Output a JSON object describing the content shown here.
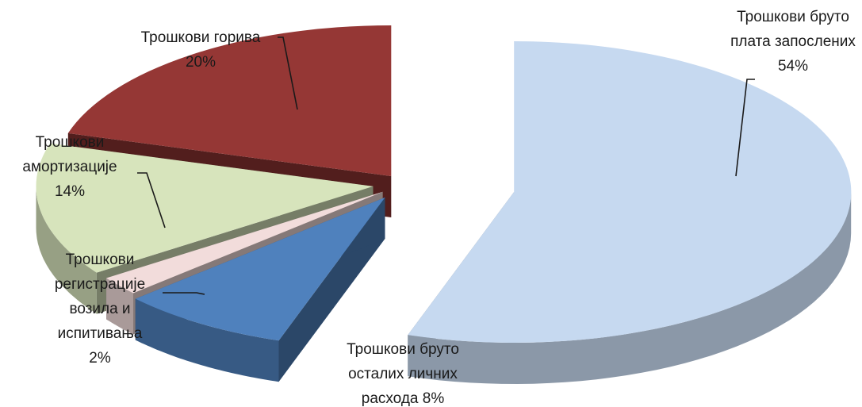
{
  "chart_data": {
    "type": "pie",
    "title": "",
    "style": "3d-exploded",
    "slices": [
      {
        "label_lines": [
          "Трошкови бруто",
          "плата запослених",
          "54%"
        ],
        "value": 54,
        "color": "#c6d9f0"
      },
      {
        "label_lines": [
          "Трошкови бруто",
          "осталих личних",
          "расхода 8%"
        ],
        "value": 8,
        "color": "#4f81bd"
      },
      {
        "label_lines": [
          "Трошкови",
          "регистрације",
          "возила и",
          "испитивања",
          "2%"
        ],
        "value": 2,
        "color": "#f2dcdb"
      },
      {
        "label_lines": [
          "Трошкови",
          "амортизације",
          "14%"
        ],
        "value": 14,
        "color": "#d7e4bc"
      },
      {
        "label_lines": [
          "Трошкови горива",
          "20%"
        ],
        "value": 20,
        "color": "#953735"
      }
    ]
  }
}
